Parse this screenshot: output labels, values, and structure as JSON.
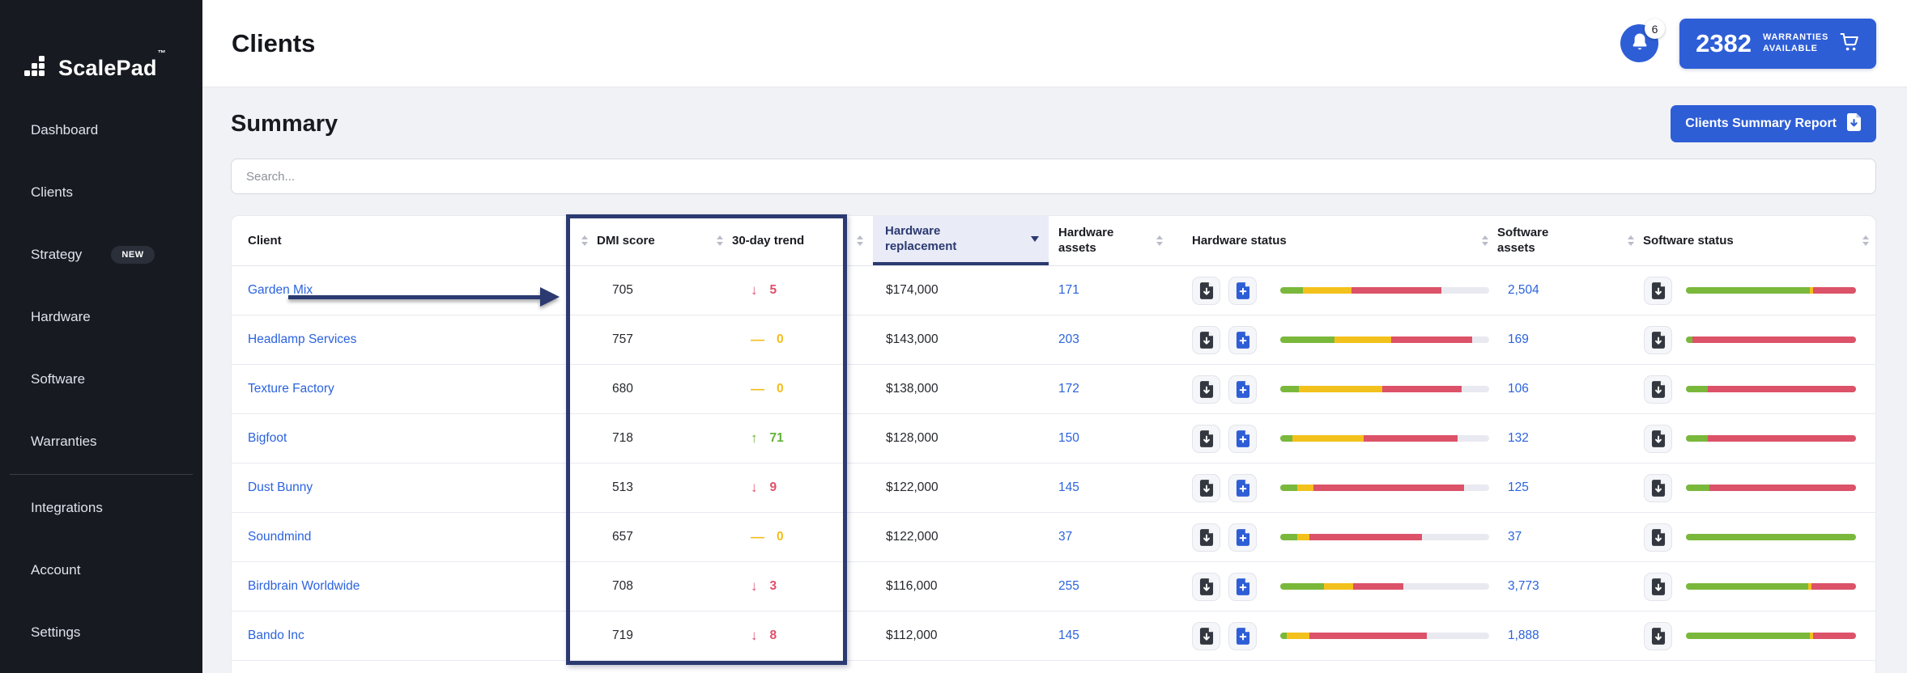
{
  "colors": {
    "primary_blue": "#2e5ed6",
    "link_blue": "#2b63de",
    "annotation_navy": "#2b3a70",
    "status_green": "#7ab83c",
    "status_yellow": "#f3c11c",
    "status_red": "#dc5268",
    "sidebar_bg": "#171a21"
  },
  "sidebar": {
    "logo": "ScalePad",
    "logo_tm": "™",
    "items": [
      {
        "label": "Dashboard"
      },
      {
        "label": "Clients"
      },
      {
        "label": "Strategy",
        "badge": "NEW"
      },
      {
        "label": "Hardware"
      },
      {
        "label": "Software"
      },
      {
        "label": "Warranties"
      },
      {
        "label": "Integrations"
      },
      {
        "label": "Account"
      },
      {
        "label": "Settings"
      }
    ]
  },
  "header": {
    "title": "Clients",
    "notifications_count": "6",
    "warranties_count": "2382",
    "warranties_label_line1": "WARRANTIES",
    "warranties_label_line2": "AVAILABLE"
  },
  "summary": {
    "title": "Summary",
    "report_button": "Clients Summary Report",
    "search_placeholder": "Search..."
  },
  "table": {
    "columns": {
      "client": "Client",
      "dmi": "DMI score",
      "trend": "30-day trend",
      "hw_replacement": "Hardware replacement",
      "hw_assets": "Hardware assets",
      "hw_status": "Hardware status",
      "sw_assets": "Software assets",
      "sw_status": "Software status"
    },
    "rows": [
      {
        "client": "Garden Mix",
        "dmi": "705",
        "trend": {
          "dir": "down",
          "value": "5"
        },
        "hw_replacement": "$174,000",
        "hw_assets": "171",
        "sw_assets": "2,504",
        "hw_bar": {
          "green": 11,
          "yellow": 23,
          "red": 43
        },
        "sw_bar": {
          "green": 73,
          "yellow": 2,
          "red": 25
        }
      },
      {
        "client": "Headlamp Services",
        "dmi": "757",
        "trend": {
          "dir": "flat",
          "value": "0"
        },
        "hw_replacement": "$143,000",
        "hw_assets": "203",
        "sw_assets": "169",
        "hw_bar": {
          "green": 26,
          "yellow": 27,
          "red": 39
        },
        "sw_bar": {
          "green": 4,
          "yellow": 0,
          "red": 96
        }
      },
      {
        "client": "Texture Factory",
        "dmi": "680",
        "trend": {
          "dir": "flat",
          "value": "0"
        },
        "hw_replacement": "$138,000",
        "hw_assets": "172",
        "sw_assets": "106",
        "hw_bar": {
          "green": 9,
          "yellow": 40,
          "red": 38
        },
        "sw_bar": {
          "green": 13,
          "yellow": 0,
          "red": 87
        }
      },
      {
        "client": "Bigfoot",
        "dmi": "718",
        "trend": {
          "dir": "up",
          "value": "71"
        },
        "hw_replacement": "$128,000",
        "hw_assets": "150",
        "sw_assets": "132",
        "hw_bar": {
          "green": 6,
          "yellow": 34,
          "red": 45
        },
        "sw_bar": {
          "green": 13,
          "yellow": 0,
          "red": 87
        }
      },
      {
        "client": "Dust Bunny",
        "dmi": "513",
        "trend": {
          "dir": "down",
          "value": "9"
        },
        "hw_replacement": "$122,000",
        "hw_assets": "145",
        "sw_assets": "125",
        "hw_bar": {
          "green": 8,
          "yellow": 8,
          "red": 72
        },
        "sw_bar": {
          "green": 14,
          "yellow": 0,
          "red": 86
        }
      },
      {
        "client": "Soundmind",
        "dmi": "657",
        "trend": {
          "dir": "flat",
          "value": "0"
        },
        "hw_replacement": "$122,000",
        "hw_assets": "37",
        "sw_assets": "37",
        "hw_bar": {
          "green": 8,
          "yellow": 6,
          "red": 54
        },
        "sw_bar": {
          "green": 100,
          "yellow": 0,
          "red": 0
        }
      },
      {
        "client": "Birdbrain Worldwide",
        "dmi": "708",
        "trend": {
          "dir": "down",
          "value": "3"
        },
        "hw_replacement": "$116,000",
        "hw_assets": "255",
        "sw_assets": "3,773",
        "hw_bar": {
          "green": 21,
          "yellow": 14,
          "red": 24
        },
        "sw_bar": {
          "green": 72,
          "yellow": 2,
          "red": 26
        }
      },
      {
        "client": "Bando Inc",
        "dmi": "719",
        "trend": {
          "dir": "down",
          "value": "8"
        },
        "hw_replacement": "$112,000",
        "hw_assets": "145",
        "sw_assets": "1,888",
        "hw_bar": {
          "green": 3,
          "yellow": 11,
          "red": 56
        },
        "sw_bar": {
          "green": 73,
          "yellow": 2,
          "red": 25
        }
      }
    ],
    "trend_glyphs": {
      "down": "↓",
      "flat": "—",
      "up": "↑"
    }
  }
}
